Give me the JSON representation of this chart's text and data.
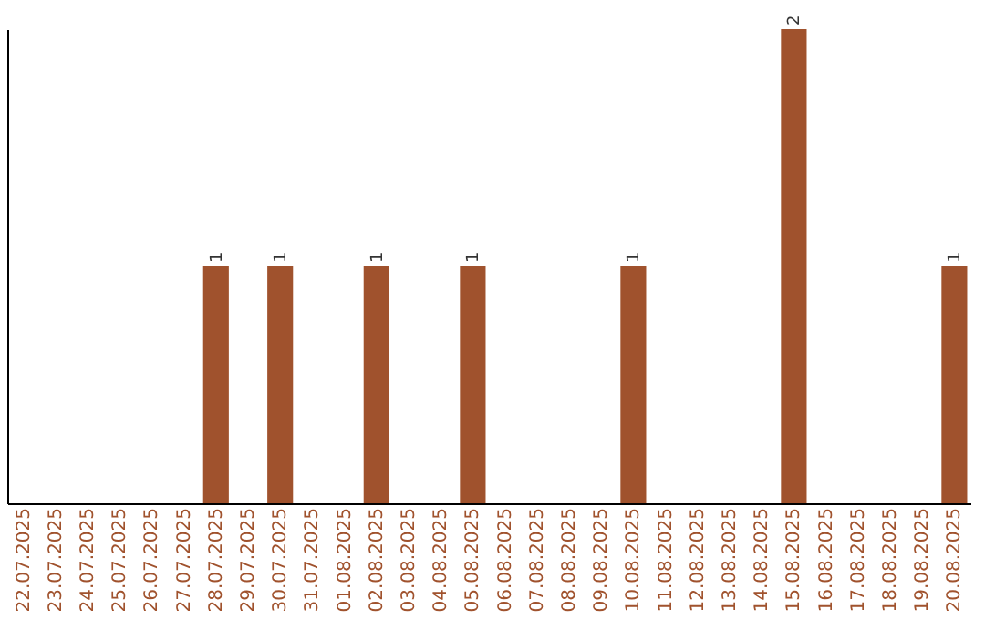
{
  "chart_data": {
    "type": "bar",
    "categories": [
      "22.07.2025",
      "23.07.2025",
      "24.07.2025",
      "25.07.2025",
      "26.07.2025",
      "27.07.2025",
      "28.07.2025",
      "29.07.2025",
      "30.07.2025",
      "31.07.2025",
      "01.08.2025",
      "02.08.2025",
      "03.08.2025",
      "04.08.2025",
      "05.08.2025",
      "06.08.2025",
      "07.08.2025",
      "08.08.2025",
      "09.08.2025",
      "10.08.2025",
      "11.08.2025",
      "12.08.2025",
      "13.08.2025",
      "14.08.2025",
      "15.08.2025",
      "16.08.2025",
      "17.08.2025",
      "18.08.2025",
      "19.08.2025",
      "20.08.2025"
    ],
    "values": [
      0,
      0,
      0,
      0,
      0,
      0,
      1,
      0,
      1,
      0,
      0,
      1,
      0,
      0,
      1,
      0,
      0,
      0,
      0,
      1,
      0,
      0,
      0,
      0,
      2,
      0,
      0,
      0,
      0,
      1
    ],
    "value_labels": [
      null,
      null,
      null,
      null,
      null,
      null,
      "1",
      null,
      "1",
      null,
      null,
      "1",
      null,
      null,
      "1",
      null,
      null,
      null,
      null,
      "1",
      null,
      null,
      null,
      null,
      "2",
      null,
      null,
      null,
      null,
      "1"
    ],
    "color": "#a0522d",
    "tick_labels": "x"
  }
}
